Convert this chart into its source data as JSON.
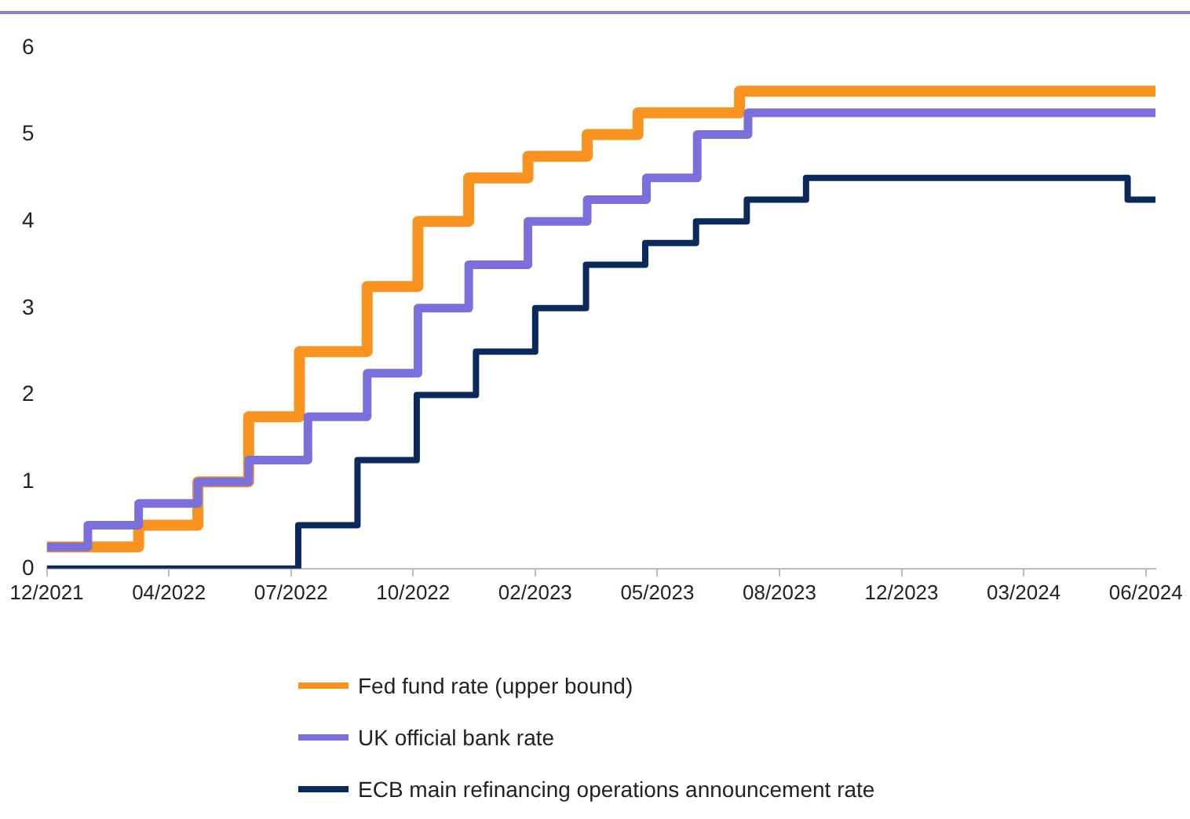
{
  "chart_data": {
    "type": "step",
    "series": [
      {
        "name": "Fed fund rate (upper bound)",
        "color": "#f7931e",
        "x": [
          "2021-12-31",
          "2022-03-17",
          "2022-05-05",
          "2022-06-16",
          "2022-07-28",
          "2022-09-22",
          "2022-11-03",
          "2022-12-15",
          "2023-02-02",
          "2023-03-23",
          "2023-05-04",
          "2023-07-27",
          "2024-07-05"
        ],
        "values": [
          0.25,
          0.5,
          1.0,
          1.75,
          2.5,
          3.25,
          4.0,
          4.5,
          4.75,
          5.0,
          5.25,
          5.5,
          5.5
        ]
      },
      {
        "name": "UK official bank rate",
        "color": "#7b6fdc",
        "x": [
          "2021-12-31",
          "2022-02-03",
          "2022-03-17",
          "2022-05-05",
          "2022-06-16",
          "2022-08-04",
          "2022-09-22",
          "2022-11-03",
          "2022-12-15",
          "2023-02-02",
          "2023-03-23",
          "2023-05-11",
          "2023-06-22",
          "2023-08-03",
          "2024-07-05"
        ],
        "values": [
          0.25,
          0.5,
          0.75,
          1.0,
          1.25,
          1.75,
          2.25,
          3.0,
          3.5,
          4.0,
          4.25,
          4.5,
          5.0,
          5.25,
          5.25
        ]
      },
      {
        "name": "ECB main refinancing operations announcement rate",
        "color": "#0b2a5b",
        "x": [
          "2021-12-31",
          "2022-07-27",
          "2022-09-14",
          "2022-11-02",
          "2022-12-21",
          "2023-02-08",
          "2023-03-22",
          "2023-05-10",
          "2023-06-21",
          "2023-08-02",
          "2023-09-20",
          "2024-06-12",
          "2024-07-05"
        ],
        "values": [
          0,
          0.5,
          1.25,
          2.0,
          2.5,
          3.0,
          3.5,
          3.75,
          4.0,
          4.25,
          4.5,
          4.25,
          4.25
        ]
      }
    ],
    "xlim": [
      "2021-12-31",
      "2024-07-05"
    ],
    "xticks": [
      {
        "value": "2021-12-31",
        "label": "12/2021"
      },
      {
        "value": "2022-04-11",
        "label": "04/2022"
      },
      {
        "value": "2022-07-21",
        "label": "07/2022"
      },
      {
        "value": "2022-10-30",
        "label": "10/2022"
      },
      {
        "value": "2023-02-08",
        "label": "02/2023"
      },
      {
        "value": "2023-05-20",
        "label": "05/2023"
      },
      {
        "value": "2023-08-29",
        "label": "08/2023"
      },
      {
        "value": "2023-12-08",
        "label": "12/2023"
      },
      {
        "value": "2024-03-18",
        "label": "03/2024"
      },
      {
        "value": "2024-06-27",
        "label": "06/2024"
      }
    ],
    "ylim": [
      0,
      6
    ],
    "yticks": [
      0,
      1,
      2,
      3,
      4,
      5,
      6
    ],
    "grid": false,
    "legend": "bottom",
    "marker": "none",
    "line_style": "solid"
  }
}
